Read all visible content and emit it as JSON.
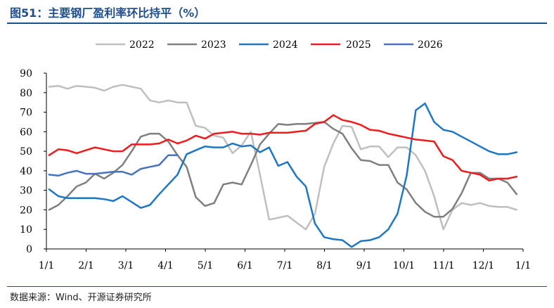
{
  "header": {
    "title": "图51：主要钢厂盈利率环比持平（%）"
  },
  "footer": {
    "source": "数据来源：Wind、开源证券研究所"
  },
  "chart_data": {
    "type": "line",
    "title": "",
    "xlabel": "",
    "ylabel": "",
    "ylim": [
      0,
      90
    ],
    "yticks": [
      0,
      10,
      20,
      30,
      40,
      50,
      60,
      70,
      80,
      90
    ],
    "xticks": [
      "1/1",
      "2/1",
      "3/1",
      "4/1",
      "5/1",
      "6/1",
      "7/1",
      "8/1",
      "9/1",
      "10/1",
      "11/1",
      "12/1",
      "1/1"
    ],
    "xlim_weeks": [
      0,
      52
    ],
    "grid": false,
    "legend": "top",
    "series": [
      {
        "name": "2022",
        "color": "#bfbfbf",
        "x": [
          0.3,
          1.3,
          2.3,
          3.3,
          4.3,
          5.3,
          6.3,
          7.3,
          8.3,
          9.3,
          10.3,
          11.3,
          12.3,
          13.3,
          14.3,
          15.3,
          16.3,
          17.3,
          18.3,
          19.3,
          20.3,
          21.3,
          22.3,
          23.3,
          24.3,
          25.3,
          26.3,
          27.3,
          28.3,
          29.3,
          30.3,
          31.3,
          32.3,
          33.3,
          34.3,
          35.3,
          36.3,
          37.3,
          38.3,
          39.3,
          40.3,
          41.3,
          42.3,
          43.3,
          44.3,
          45.3,
          46.3,
          47.3,
          48.3,
          49.3,
          50.3,
          51.3
        ],
        "y": [
          83,
          83.5,
          82,
          83.5,
          83,
          82.5,
          81,
          83,
          84,
          83,
          82,
          76,
          75,
          76,
          75,
          75,
          63,
          62,
          58,
          57,
          49,
          53,
          60,
          38,
          15,
          16,
          17,
          13.5,
          10,
          18,
          42,
          54,
          63,
          62.5,
          51,
          52.5,
          52.5,
          47,
          52,
          52,
          48,
          40,
          27,
          10,
          20,
          23.5,
          22.5,
          23.5,
          22,
          21.5,
          21.5,
          20
        ]
      },
      {
        "name": "2023",
        "color": "#7f7f7f",
        "x": [
          0.3,
          1.3,
          2.3,
          3.3,
          4.3,
          5.3,
          6.3,
          7.3,
          8.3,
          9.3,
          10.3,
          11.3,
          12.3,
          13.3,
          14.3,
          15.3,
          16.3,
          17.3,
          18.3,
          19.3,
          20.3,
          21.3,
          22.3,
          23.3,
          24.3,
          25.3,
          26.3,
          27.3,
          28.3,
          29.3,
          30.3,
          31.3,
          32.3,
          33.3,
          34.3,
          35.3,
          36.3,
          37.3,
          38.3,
          39.3,
          40.3,
          41.3,
          42.3,
          43.3,
          44.3,
          45.3,
          46.3,
          47.3,
          48.3,
          49.3,
          50.3,
          51.3
        ],
        "y": [
          20,
          22.5,
          27,
          32,
          34,
          38.5,
          36,
          39,
          43,
          50,
          57.5,
          59,
          59,
          55,
          48,
          42,
          26.5,
          22,
          23.5,
          33,
          34,
          33,
          43,
          53.5,
          59,
          64,
          63.5,
          64,
          64,
          64.5,
          65,
          61.5,
          59,
          51.5,
          45.5,
          45,
          43,
          43,
          34,
          30.5,
          23.5,
          19,
          16.5,
          16.5,
          20.5,
          28.5,
          39,
          39,
          36,
          36,
          34,
          28
        ]
      },
      {
        "name": "2024",
        "color": "#1f77c4",
        "x": [
          0.3,
          1.3,
          2.3,
          3.3,
          4.3,
          5.3,
          6.3,
          7.3,
          8.3,
          9.3,
          10.3,
          11.3,
          12.3,
          13.3,
          14.3,
          15.3,
          16.3,
          17.3,
          18.3,
          19.3,
          20.3,
          21.3,
          22.3,
          23.3,
          24.3,
          25.3,
          26.3,
          27.3,
          28.3,
          29.3,
          30.3,
          31.3,
          32.3,
          33.3,
          34.3,
          35.3,
          36.3,
          37.3,
          38.3,
          39.3,
          40.3,
          41.3,
          42.3,
          43.3,
          44.3,
          45.3,
          46.3,
          47.3,
          48.3,
          49.3,
          50.3,
          51.3
        ],
        "y": [
          30.5,
          27,
          26,
          26,
          26,
          26,
          25.5,
          24.5,
          27,
          24,
          21,
          22.5,
          28,
          33,
          38,
          48.5,
          50.5,
          52.5,
          52,
          52,
          54,
          52.5,
          53,
          49.5,
          52,
          42.5,
          44.5,
          37,
          32,
          13,
          6,
          5,
          4.5,
          1,
          4,
          4.5,
          6,
          10,
          18,
          37.5,
          71,
          74.5,
          65,
          61,
          60,
          57.5,
          55,
          52.5,
          50,
          48.5,
          48.5,
          49.5
        ]
      },
      {
        "name": "2025",
        "color": "#ee1c1c",
        "x": [
          0.3,
          1.3,
          2.3,
          3.3,
          4.3,
          5.3,
          6.3,
          7.3,
          8.3,
          9.3,
          10.3,
          11.3,
          12.3,
          13.3,
          14.3,
          15.3,
          16.3,
          17.3,
          18.3,
          19.3,
          20.3,
          21.3,
          22.3,
          23.3,
          24.3,
          25.3,
          26.3,
          27.3,
          28.3,
          29.3,
          30.3,
          31.3,
          32.3,
          33.3,
          34.3,
          35.3,
          36.3,
          37.3,
          38.3,
          39.3,
          40.3,
          41.3,
          42.3,
          43.3,
          44.3,
          45.3,
          46.3,
          47.3,
          48.3,
          49.3,
          50.3,
          51.3
        ],
        "y": [
          48,
          51,
          50.5,
          49,
          50.5,
          52,
          51,
          50,
          50,
          53.5,
          53.5,
          53.5,
          54,
          56,
          54,
          55.5,
          58,
          56.5,
          59,
          59.5,
          60,
          59,
          59,
          58.5,
          59.5,
          59.5,
          59.5,
          60,
          60.5,
          64,
          65,
          68.5,
          66,
          65,
          63.5,
          61,
          60.5,
          59,
          58,
          57,
          56,
          55.5,
          55,
          47.5,
          45.5,
          40,
          39,
          38,
          35,
          36,
          36,
          37
        ]
      },
      {
        "name": "2026",
        "color": "#4472c4",
        "x": [
          0.3,
          1.3,
          2.3,
          3.3,
          4.3,
          5.3,
          6.3,
          7.3,
          8.3,
          9.3,
          10.3,
          11.3,
          12.3,
          13.3,
          14.3
        ],
        "y": [
          38,
          37.5,
          39,
          40,
          38.5,
          38.5,
          39,
          39.5,
          39.5,
          38,
          41,
          42,
          43,
          48,
          48
        ]
      }
    ]
  }
}
